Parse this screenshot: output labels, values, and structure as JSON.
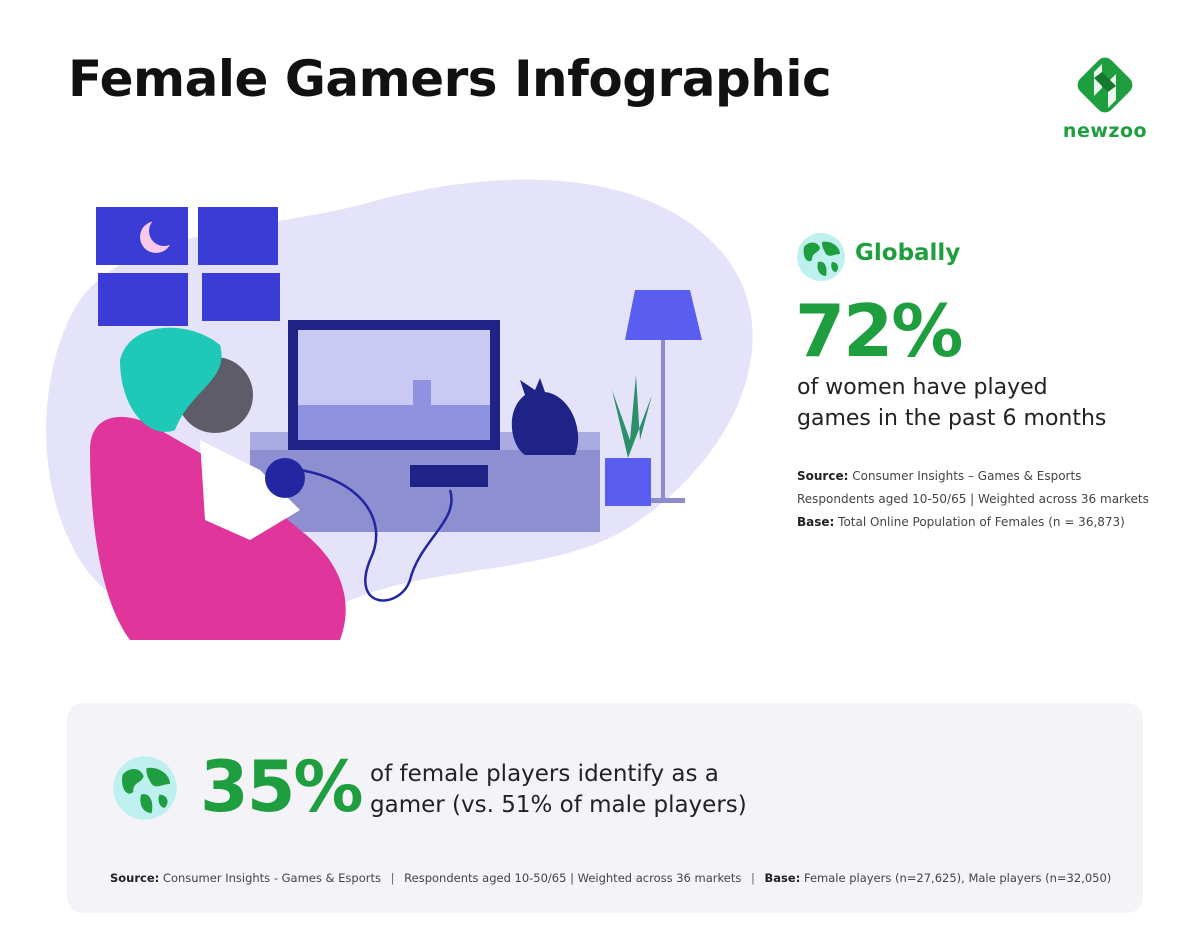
{
  "header": {
    "title": "Female Gamers Infographic",
    "logo_text": "newzoo"
  },
  "colors": {
    "accent_green": "#1e9e3e",
    "blob": "#e4e3fa",
    "panel": "#f3f3f8"
  },
  "global_stat": {
    "label": "Globally",
    "icon": "globe-icon",
    "value": "72%",
    "description_line1": "of women have played",
    "description_line2": "games in the past 6 months",
    "source_label": "Source:",
    "source_text": "Consumer Insights – Games & Esports",
    "respondents": "Respondents aged 10-50/65 | Weighted across 36 markets",
    "base_label": "Base:",
    "base_text": "Total Online Population of Females (n = 36,873)"
  },
  "gamer_stat": {
    "icon": "globe-icon",
    "value": "35%",
    "description_line1": "of female players identify as a",
    "description_line2": "gamer (vs. 51% of male players)",
    "source_label": "Source:",
    "source_text": "Consumer Insights - Games & Esports",
    "respondents": "Respondents aged 10-50/65 | Weighted across 36 markets",
    "base_label": "Base:",
    "base_text": "Female players (n=27,625), Male players (n=32,050)",
    "separator": "|"
  }
}
